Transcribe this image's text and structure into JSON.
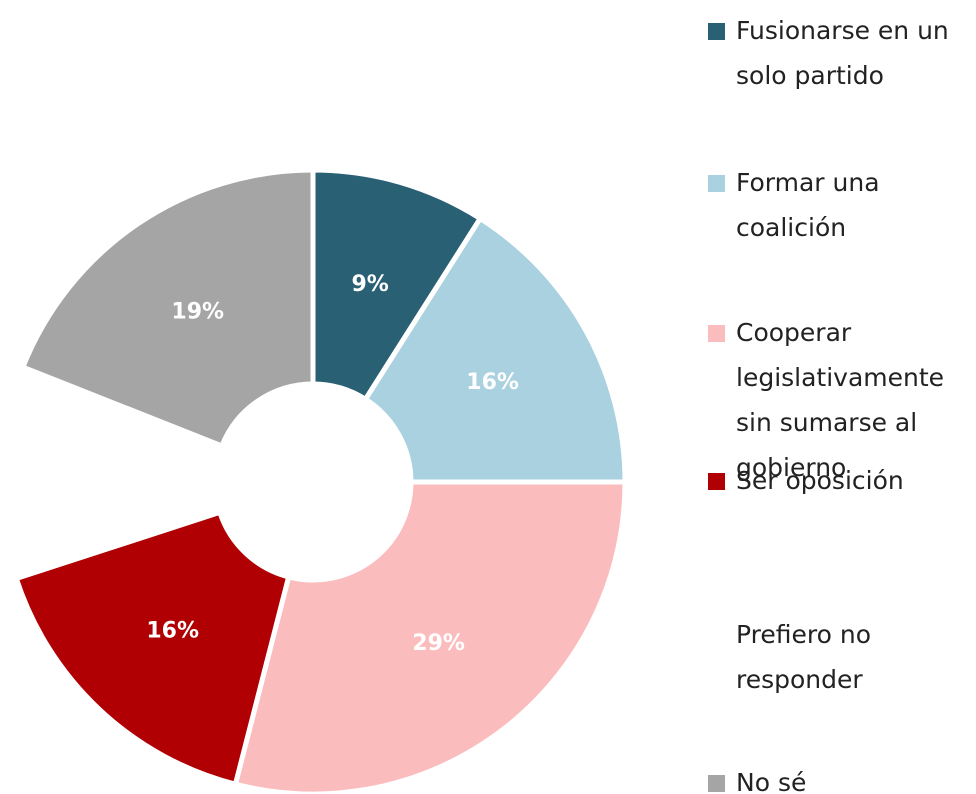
{
  "chart_data": {
    "type": "donut",
    "categories": [
      "Fusionarse en un solo partido",
      "Formar una coalición",
      "Cooperar legislativamente sin sumarse al gobierno",
      "Ser oposición",
      "Prefiero no responder",
      "No sé"
    ],
    "values": [
      9,
      16,
      29,
      16,
      11,
      19
    ],
    "value_labels": [
      "9%",
      "16%",
      "29%",
      "16%",
      null,
      "19%"
    ],
    "colors": [
      "#2a6073",
      "#a9d1df",
      "#fbbcbe",
      "#b00004",
      "#ffffff",
      "#a5a5a5"
    ]
  }
}
